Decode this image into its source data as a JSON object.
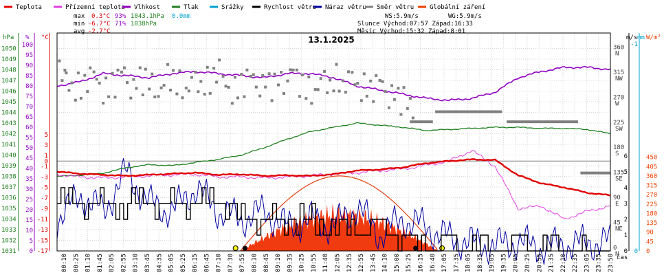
{
  "chart_data": {
    "type": "line",
    "title": "13.1.2025",
    "legend": [
      {
        "name": "Teplota",
        "color": "#e00000"
      },
      {
        "name": "Přízemní teplota",
        "color": "#e040e0"
      },
      {
        "name": "Vlhkost",
        "color": "#9000c0"
      },
      {
        "name": "Tlak",
        "color": "#208020"
      },
      {
        "name": "Srážky",
        "color": "#00a0d0"
      },
      {
        "name": "Rychlost větru",
        "color": "#000000"
      },
      {
        "name": "Náraz větru",
        "color": "#0000a0"
      },
      {
        "name": "Směr větru",
        "color": "#808080"
      },
      {
        "name": "Globální záření",
        "color": "#f04000"
      }
    ],
    "stats": {
      "max_label": "max",
      "max_temp": "0.3°C",
      "max_hum": "93%",
      "max_press": "1043.1hPa",
      "rain": "0.0mm",
      "min_label": "min",
      "min_temp": "-6.7°C",
      "min_hum": "71%",
      "min_press": "1038hPa",
      "avg_label": "avg",
      "avg_temp": "-2.7°C",
      "ws": "WS:5.9m/s",
      "wg": "WG:5.9m/s",
      "sun": "Slunce Východ:07:57  Západ:16:33",
      "moon": "Měsíc  Východ:15:32  Západ:8:01"
    },
    "axis_units": {
      "press": "hPa",
      "hum": "%",
      "temp": "°C",
      "wind": "m/s",
      "rain": "mm",
      "rad": "W/m²",
      "time": "čas"
    },
    "press_ticks": [
      1031,
      1032,
      1033,
      1034,
      1035,
      1036,
      1037,
      1038,
      1039,
      1040,
      1041,
      1042,
      1043,
      1044,
      1045,
      1046,
      1047,
      1048,
      1049,
      1050
    ],
    "hum_ticks": [
      0,
      5,
      10,
      15,
      20,
      25,
      30,
      35,
      40,
      45,
      50,
      55,
      60,
      65,
      70,
      75,
      80,
      85,
      90,
      95,
      100
    ],
    "temp_ticks": [
      -17,
      -15,
      -13,
      -11,
      -9,
      -7,
      -5,
      -3,
      -1,
      0,
      1,
      3,
      5
    ],
    "wind_ticks": [
      0,
      1,
      2,
      3,
      4,
      5,
      6
    ],
    "rain_ticks": [
      0,
      -1
    ],
    "rad_ticks": [
      0,
      45,
      90,
      135,
      180,
      225,
      270,
      315,
      360,
      405,
      450
    ],
    "dir_ticks": [
      {
        "deg": "0",
        "lbl": "N"
      },
      {
        "deg": "45",
        "lbl": "NE"
      },
      {
        "deg": "90",
        "lbl": "E"
      },
      {
        "deg": "135",
        "lbl": "SE"
      },
      {
        "deg": "180",
        "lbl": "S"
      },
      {
        "deg": "225",
        "lbl": "SW"
      },
      {
        "deg": "270",
        "lbl": "W"
      },
      {
        "deg": "315",
        "lbl": "NW"
      },
      {
        "deg": "360",
        "lbl": "N"
      }
    ],
    "time_labels": [
      "00:10",
      "00:25",
      "01:10",
      "01:45",
      "02:05",
      "02:55",
      "03:10",
      "03:45",
      "04:35",
      "05:05",
      "05:25",
      "06:15",
      "06:45",
      "07:10",
      "07:30",
      "07:55",
      "08:10",
      "08:45",
      "09:10",
      "09:35",
      "10:25",
      "10:55",
      "11:40",
      "12:05",
      "12:35",
      "12:55",
      "13:45",
      "14:10",
      "15:00",
      "15:25",
      "16:15",
      "16:40",
      "17:05",
      "17:35",
      "18:05",
      "18:35",
      "19:05",
      "19:35",
      "20:05",
      "20:25",
      "20:55",
      "21:35",
      "22:10",
      "22:35",
      "23:05",
      "23:35",
      "23:50"
    ],
    "temperature": {
      "t": [
        0,
        1,
        2,
        3,
        4,
        5,
        6,
        7,
        8,
        9,
        10,
        11,
        12,
        13,
        14,
        15,
        16,
        17,
        18,
        19,
        20,
        21,
        22,
        23,
        24
      ],
      "v": [
        -2.0,
        -2.4,
        -2.6,
        -2.8,
        -2.6,
        -2.4,
        -2.2,
        -2.6,
        -2.5,
        -2.8,
        -2.7,
        -2.8,
        -2.5,
        -1.8,
        -1.6,
        -1.2,
        -0.4,
        0.0,
        0.3,
        0.2,
        -2.7,
        -4.2,
        -5.0,
        -6.0,
        -6.5
      ]
    },
    "ground_temperature": {
      "t": [
        0,
        1,
        2,
        3,
        4,
        5,
        6,
        7,
        8,
        9,
        10,
        11,
        12,
        13,
        14,
        15,
        16,
        17,
        18,
        19,
        20,
        21,
        22,
        23,
        24
      ],
      "v": [
        -2.5,
        -3.0,
        -3.2,
        -3.0,
        -2.8,
        -2.6,
        -2.5,
        -3.0,
        -3.0,
        -3.2,
        -3.0,
        -2.8,
        -2.4,
        -2.2,
        -1.8,
        -1.5,
        -0.8,
        0.0,
        2.0,
        -1.0,
        -9.0,
        -8.5,
        -11.0,
        -9.5,
        -8.5
      ]
    },
    "humidity": {
      "t": [
        0,
        1,
        2,
        3,
        4,
        5,
        6,
        7,
        8,
        9,
        10,
        11,
        12,
        13,
        14,
        15,
        16,
        17,
        18,
        19,
        20,
        21,
        22,
        23,
        24
      ],
      "v": [
        80,
        82,
        86,
        85,
        84,
        86,
        87,
        86,
        85,
        84,
        86,
        86,
        84,
        80,
        78,
        76,
        74,
        73,
        74,
        77,
        84,
        87,
        89,
        89,
        88
      ]
    },
    "pressure": {
      "t": [
        0,
        1,
        2,
        3,
        4,
        5,
        6,
        7,
        8,
        9,
        10,
        11,
        12,
        13,
        14,
        15,
        16,
        17,
        18,
        19,
        20,
        21,
        22,
        23,
        24
      ],
      "v": [
        1038.0,
        1038.1,
        1038.3,
        1038.8,
        1039.1,
        1039.0,
        1039.3,
        1039.6,
        1040.0,
        1040.7,
        1041.5,
        1042.2,
        1042.6,
        1043.0,
        1042.8,
        1042.6,
        1042.3,
        1042.4,
        1042.5,
        1042.6,
        1042.6,
        1042.5,
        1042.5,
        1042.4,
        1042.0
      ]
    },
    "wind_speed": {
      "t": [
        0,
        1,
        2,
        3,
        4,
        5,
        6,
        7,
        8,
        9,
        10,
        11,
        12,
        13,
        14,
        15,
        16,
        17,
        18,
        19,
        20,
        21,
        22,
        23,
        24
      ],
      "v": [
        3,
        3,
        3,
        3,
        3,
        3,
        3,
        3,
        2,
        2,
        2,
        2,
        1.3,
        1.3,
        1.3,
        0.8,
        0.5,
        0.4,
        0.4,
        0.3,
        0.4,
        0.4,
        0.3,
        0.3,
        0.4
      ]
    },
    "wind_gust": {
      "t": [
        0,
        1,
        2,
        3,
        4,
        5,
        6,
        7,
        8,
        9,
        10,
        11,
        12,
        13,
        14,
        15,
        16,
        17,
        18,
        19,
        20,
        21,
        22,
        23,
        24
      ],
      "v": [
        2.0,
        3.5,
        2.5,
        5.0,
        3.0,
        2.5,
        4.0,
        2.5,
        2.0,
        2.5,
        1.5,
        2.0,
        1.5,
        2.8,
        1.0,
        2.0,
        1.5,
        0.8,
        0.5,
        0.3,
        0.6,
        0.2,
        0.4,
        0.5,
        0.6
      ]
    },
    "wind_direction": {
      "t": [
        0.1,
        0.4,
        0.8,
        1.2,
        1.6,
        2.0,
        2.4,
        2.8,
        3.2,
        3.6,
        4.0,
        4.4,
        4.8,
        5.2,
        5.6,
        6.0,
        6.4,
        6.8,
        7.2,
        7.6,
        8.0,
        8.4,
        8.8,
        9.2,
        9.6,
        10.0,
        10.4,
        10.8,
        11.2,
        11.6,
        12.0,
        12.4,
        12.8,
        13.2,
        13.6,
        14.0,
        14.4,
        14.8,
        15.2
      ],
      "v": [
        320,
        300,
        295,
        305,
        310,
        290,
        300,
        320,
        295,
        305,
        300,
        290,
        310,
        300,
        295,
        300,
        305,
        320,
        300,
        290,
        300,
        310,
        300,
        295,
        305,
        320,
        300,
        290,
        295,
        300,
        310,
        300,
        305,
        295,
        290,
        300,
        280,
        270,
        260
      ]
    },
    "direction_segments": [
      {
        "from": 15.3,
        "to": 16.3,
        "v": 232
      },
      {
        "from": 16.4,
        "to": 19.3,
        "v": 250
      },
      {
        "from": 19.5,
        "to": 22.6,
        "v": 232
      },
      {
        "from": 22.7,
        "to": 24.0,
        "v": 140
      }
    ],
    "radiation_peak": 360,
    "radiation_measured_peak": 230,
    "sunrise": 7.95,
    "sunset": 16.55
  }
}
